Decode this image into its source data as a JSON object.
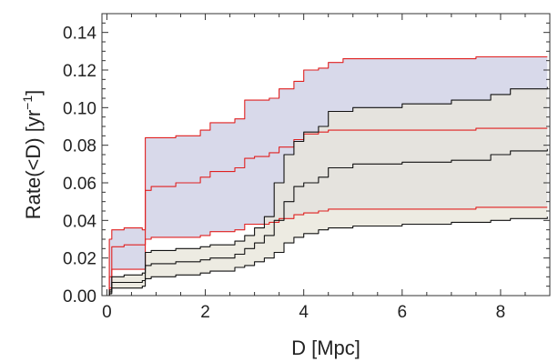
{
  "chart_data": {
    "type": "area",
    "title": "",
    "xlabel": "D [Mpc]",
    "ylabel": {
      "prefix": "Rate(<D) [yr",
      "exponent": "−1",
      "suffix": "]"
    },
    "xlim": [
      -0.1,
      9.0
    ],
    "ylim": [
      0.0,
      0.15
    ],
    "xticks": [
      0,
      2,
      4,
      6,
      8
    ],
    "yticks": [
      0.0,
      0.02,
      0.04,
      0.06,
      0.08,
      0.1,
      0.12,
      0.14
    ],
    "ytick_labels": [
      "0.00",
      "0.02",
      "0.04",
      "0.06",
      "0.08",
      "0.10",
      "0.12",
      "0.14"
    ],
    "grid": false,
    "colors": {
      "red_band_fill": "#d8d9ea",
      "black_band_fill": "#e8e6da",
      "overlap_fill": "#cfcaca",
      "red_line": "#e02020",
      "black_line": "#111111",
      "frame": "#333333"
    },
    "bands": [
      {
        "color": "red",
        "fill": "#d8d9ea",
        "x": [
          0.0,
          0.05,
          0.1,
          0.35,
          0.72,
          0.78,
          0.9,
          1.4,
          1.9,
          2.1,
          2.6,
          2.8,
          3.0,
          3.3,
          3.5,
          3.8,
          4.0,
          4.3,
          4.5,
          4.8,
          6.0,
          7.5,
          8.95
        ],
        "upper": [
          0.0,
          0.03,
          0.035,
          0.036,
          0.035,
          0.084,
          0.084,
          0.085,
          0.088,
          0.092,
          0.094,
          0.104,
          0.104,
          0.105,
          0.11,
          0.114,
          0.12,
          0.121,
          0.124,
          0.126,
          0.126,
          0.127,
          0.127
        ],
        "middle": [
          0.0,
          0.01,
          0.026,
          0.027,
          0.027,
          0.056,
          0.058,
          0.06,
          0.063,
          0.066,
          0.068,
          0.073,
          0.074,
          0.076,
          0.079,
          0.083,
          0.086,
          0.087,
          0.088,
          0.088,
          0.088,
          0.089,
          0.089
        ],
        "lower": [
          0.0,
          0.004,
          0.014,
          0.014,
          0.014,
          0.03,
          0.031,
          0.031,
          0.032,
          0.034,
          0.035,
          0.038,
          0.038,
          0.039,
          0.041,
          0.043,
          0.044,
          0.045,
          0.046,
          0.046,
          0.046,
          0.047,
          0.047
        ]
      },
      {
        "color": "black",
        "fill": "#e8e6da",
        "x": [
          0.0,
          0.05,
          0.1,
          0.35,
          0.72,
          0.78,
          0.9,
          1.4,
          1.9,
          2.1,
          2.6,
          2.8,
          3.0,
          3.2,
          3.4,
          3.6,
          3.8,
          4.0,
          4.3,
          4.5,
          5.0,
          6.0,
          7.0,
          7.8,
          8.2,
          8.95
        ],
        "upper": [
          0.0,
          0.003,
          0.01,
          0.011,
          0.012,
          0.023,
          0.024,
          0.025,
          0.026,
          0.027,
          0.029,
          0.032,
          0.036,
          0.042,
          0.06,
          0.075,
          0.082,
          0.087,
          0.09,
          0.098,
          0.1,
          0.102,
          0.104,
          0.107,
          0.11,
          0.111
        ],
        "middle": [
          0.0,
          0.002,
          0.007,
          0.007,
          0.008,
          0.016,
          0.017,
          0.018,
          0.019,
          0.02,
          0.022,
          0.025,
          0.028,
          0.032,
          0.04,
          0.05,
          0.058,
          0.06,
          0.063,
          0.068,
          0.07,
          0.071,
          0.072,
          0.075,
          0.077,
          0.078
        ],
        "lower": [
          0.0,
          0.001,
          0.004,
          0.004,
          0.005,
          0.009,
          0.01,
          0.011,
          0.012,
          0.013,
          0.015,
          0.016,
          0.018,
          0.02,
          0.023,
          0.028,
          0.031,
          0.033,
          0.035,
          0.036,
          0.037,
          0.038,
          0.039,
          0.04,
          0.041,
          0.042
        ]
      }
    ]
  }
}
